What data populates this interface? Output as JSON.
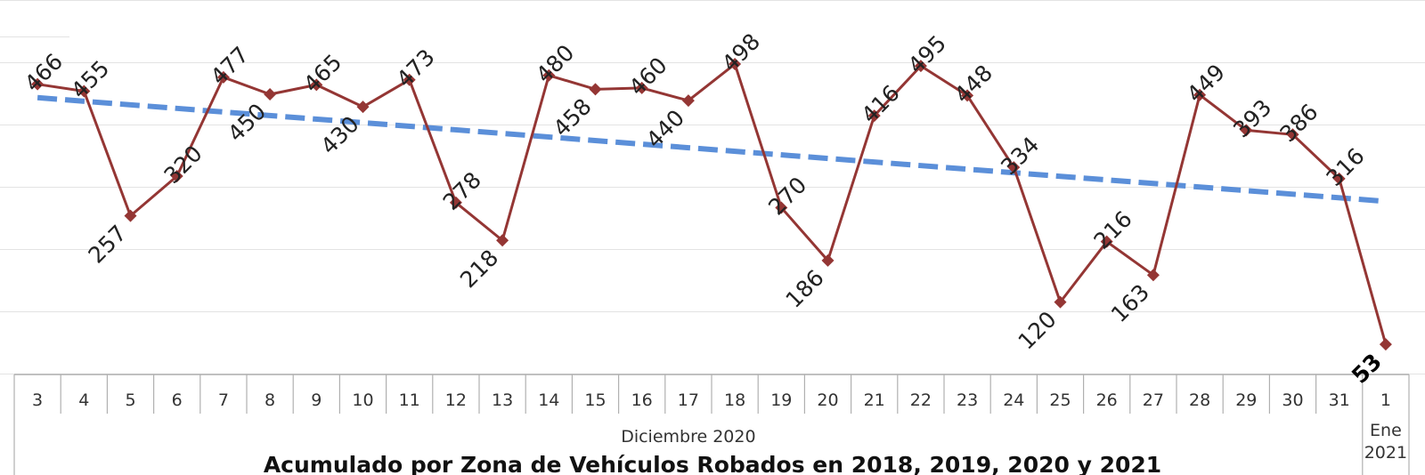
{
  "chart_data": {
    "type": "line",
    "title": "Acumulado por Zona de Vehículos Robados en 2018, 2019, 2020 y 2021",
    "categories": [
      "3",
      "4",
      "5",
      "6",
      "7",
      "8",
      "9",
      "10",
      "11",
      "12",
      "13",
      "14",
      "15",
      "16",
      "17",
      "18",
      "19",
      "20",
      "21",
      "22",
      "23",
      "24",
      "25",
      "26",
      "27",
      "28",
      "29",
      "30",
      "31",
      "1"
    ],
    "category_groups": [
      {
        "label": "Diciembre 2020",
        "span": 29
      },
      {
        "label": "Ene\n2021",
        "span": 1
      }
    ],
    "series": [
      {
        "values": [
          466,
          455,
          257,
          320,
          477,
          450,
          465,
          430,
          473,
          278,
          218,
          480,
          458,
          460,
          440,
          498,
          270,
          186,
          416,
          495,
          448,
          334,
          120,
          216,
          163,
          449,
          393,
          386,
          316,
          53
        ],
        "color": "#943634",
        "marker": "diamond"
      }
    ],
    "trendline": {
      "type": "linear",
      "color": "#5B8FD9",
      "style": "dashed"
    },
    "ylim": [
      0,
      550
    ],
    "grid": true,
    "y_axis_labels": false
  }
}
